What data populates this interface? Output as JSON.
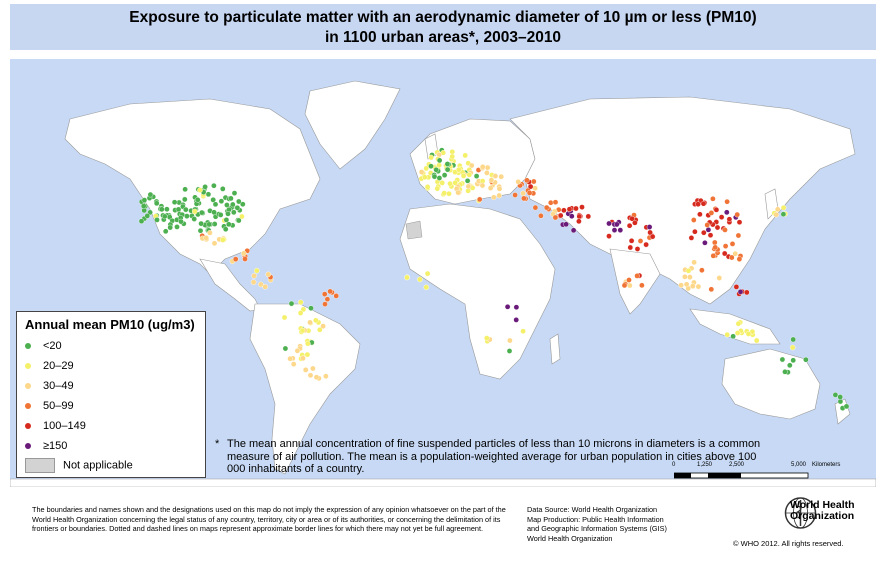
{
  "title": {
    "line1": "Exposure to particulate matter with an aerodynamic diameter of 10 µm or less (PM10)",
    "line2": "in 1100 urban areas*, 2003–2010"
  },
  "legend": {
    "title": "Annual mean PM10 (ug/m3)",
    "items": [
      {
        "label": "<20",
        "color": "#4caf50"
      },
      {
        "label": "20–29",
        "color": "#f5f06a"
      },
      {
        "label": "30–49",
        "color": "#fdd78a"
      },
      {
        "label": "50–99",
        "color": "#f07436"
      },
      {
        "label": "100–149",
        "color": "#d62a1e"
      },
      {
        "label": "≥150",
        "color": "#6a1b7a"
      }
    ],
    "not_applicable": "Not applicable"
  },
  "footnote": {
    "mark": "*",
    "text": "The mean annual concentration of fine suspended particles of less than 10 microns in diameters is a common measure of air pollution. The mean is a population-weighted average for urban population in cities above 100 000 inhabitants of a country."
  },
  "scale": {
    "ticks": [
      "0",
      "1,250",
      "2,500",
      "5,000"
    ],
    "unit": "Kilometers"
  },
  "disclaimer": "The boundaries and names shown and the designations used on this map do not imply the expression of any opinion whatsoever on the part of the World Health Organization concerning the legal status of any country, territory, city or area or of its authorities, or concerning the delimitation of its frontiers or boundaries. Dotted and dashed lines on maps represent approximate border lines for which there may not yet be full agreement.",
  "source": {
    "line1": "Data Source: World Health Organization",
    "line2": "Map Production: Public Health Information",
    "line3": "and Geographic Information Systems (GIS)",
    "line4": "World Health Organization"
  },
  "logo": {
    "line1": "World Health",
    "line2": "Organization"
  },
  "copyright": "© WHO 2012. All rights reserved.",
  "colors": {
    "ocean": "#c7d9f4",
    "land": "#ffffff",
    "not_applicable": "#d3d3d3",
    "title_band": "#c7d7f2"
  }
}
